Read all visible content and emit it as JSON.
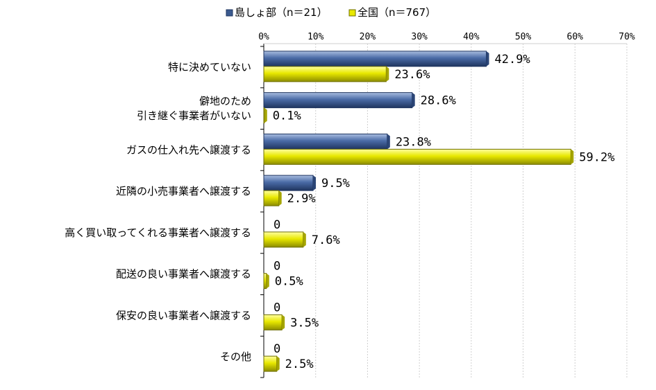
{
  "chart_data": {
    "type": "bar",
    "orientation": "horizontal",
    "categories": [
      [
        "特に決めていない"
      ],
      [
        "僻地のため",
        "引き継ぐ事業者がいない"
      ],
      [
        "ガスの仕入れ先へ譲渡する"
      ],
      [
        "近隣の小売事業者へ譲渡する"
      ],
      [
        "高く買い取ってくれる事業者へ譲渡する"
      ],
      [
        "配送の良い事業者へ譲渡する"
      ],
      [
        "保安の良い事業者へ譲渡する"
      ],
      [
        "その他"
      ]
    ],
    "series": [
      {
        "name": "島しょ部（n＝21）",
        "color": "#3B5A8F",
        "values": [
          42.9,
          28.6,
          23.8,
          9.5,
          0,
          0,
          0,
          0
        ],
        "labels": [
          "42.9%",
          "28.6%",
          "23.8%",
          "9.5%",
          "0",
          "0",
          "0",
          "0"
        ]
      },
      {
        "name": "全国（n＝767）",
        "color": "#E8E800",
        "values": [
          23.6,
          0.1,
          59.2,
          2.9,
          7.6,
          0.5,
          3.5,
          2.5
        ],
        "labels": [
          "23.6%",
          "0.1%",
          "59.2%",
          "2.9%",
          "7.6%",
          "0.5%",
          "3.5%",
          "2.5%"
        ]
      }
    ],
    "xlim": [
      0,
      70
    ],
    "xticks": [
      "0%",
      "10%",
      "20%",
      "30%",
      "40%",
      "50%",
      "60%",
      "70%"
    ],
    "legend_position": "top",
    "grid": true
  }
}
